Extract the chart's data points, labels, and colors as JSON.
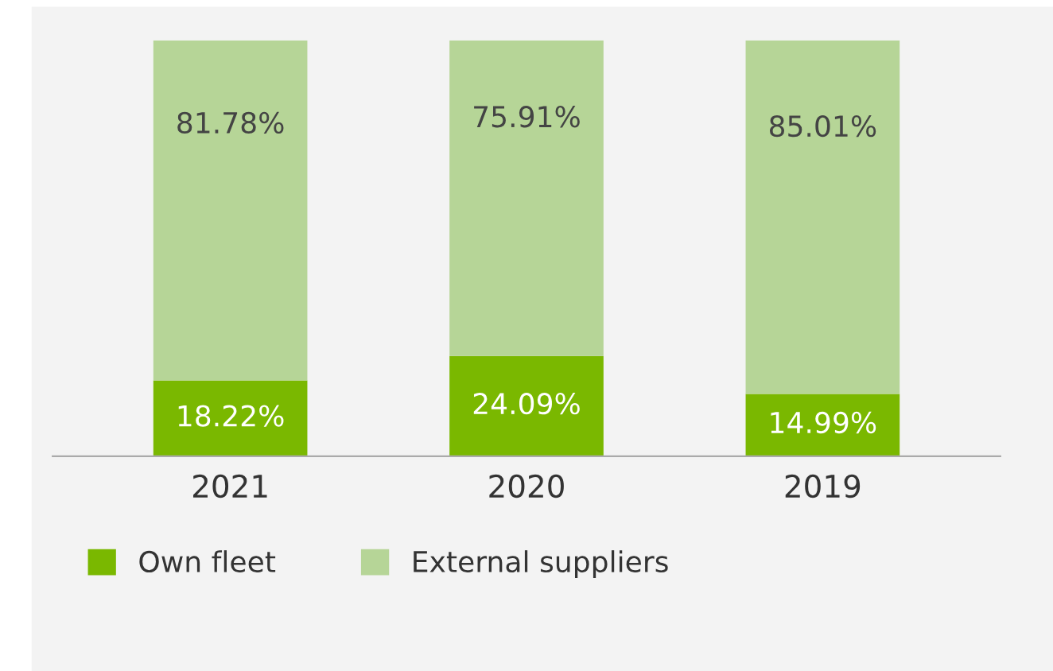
{
  "chart_data": {
    "type": "bar",
    "stacked": true,
    "data_labels": true,
    "legend": "bottom left",
    "grid": false,
    "categories": [
      "2021",
      "2020",
      "2019"
    ],
    "series": [
      {
        "name": "Own fleet",
        "color": "#7ab800",
        "values": [
          18.22,
          24.09,
          14.99
        ],
        "value_labels": [
          "18.22%",
          "24.09%",
          "14.99%"
        ]
      },
      {
        "name": "External suppliers",
        "color": "#b6d597",
        "values": [
          81.78,
          75.91,
          85.01
        ],
        "value_labels": [
          "81.78%",
          "75.91%",
          "85.01%"
        ]
      }
    ]
  }
}
